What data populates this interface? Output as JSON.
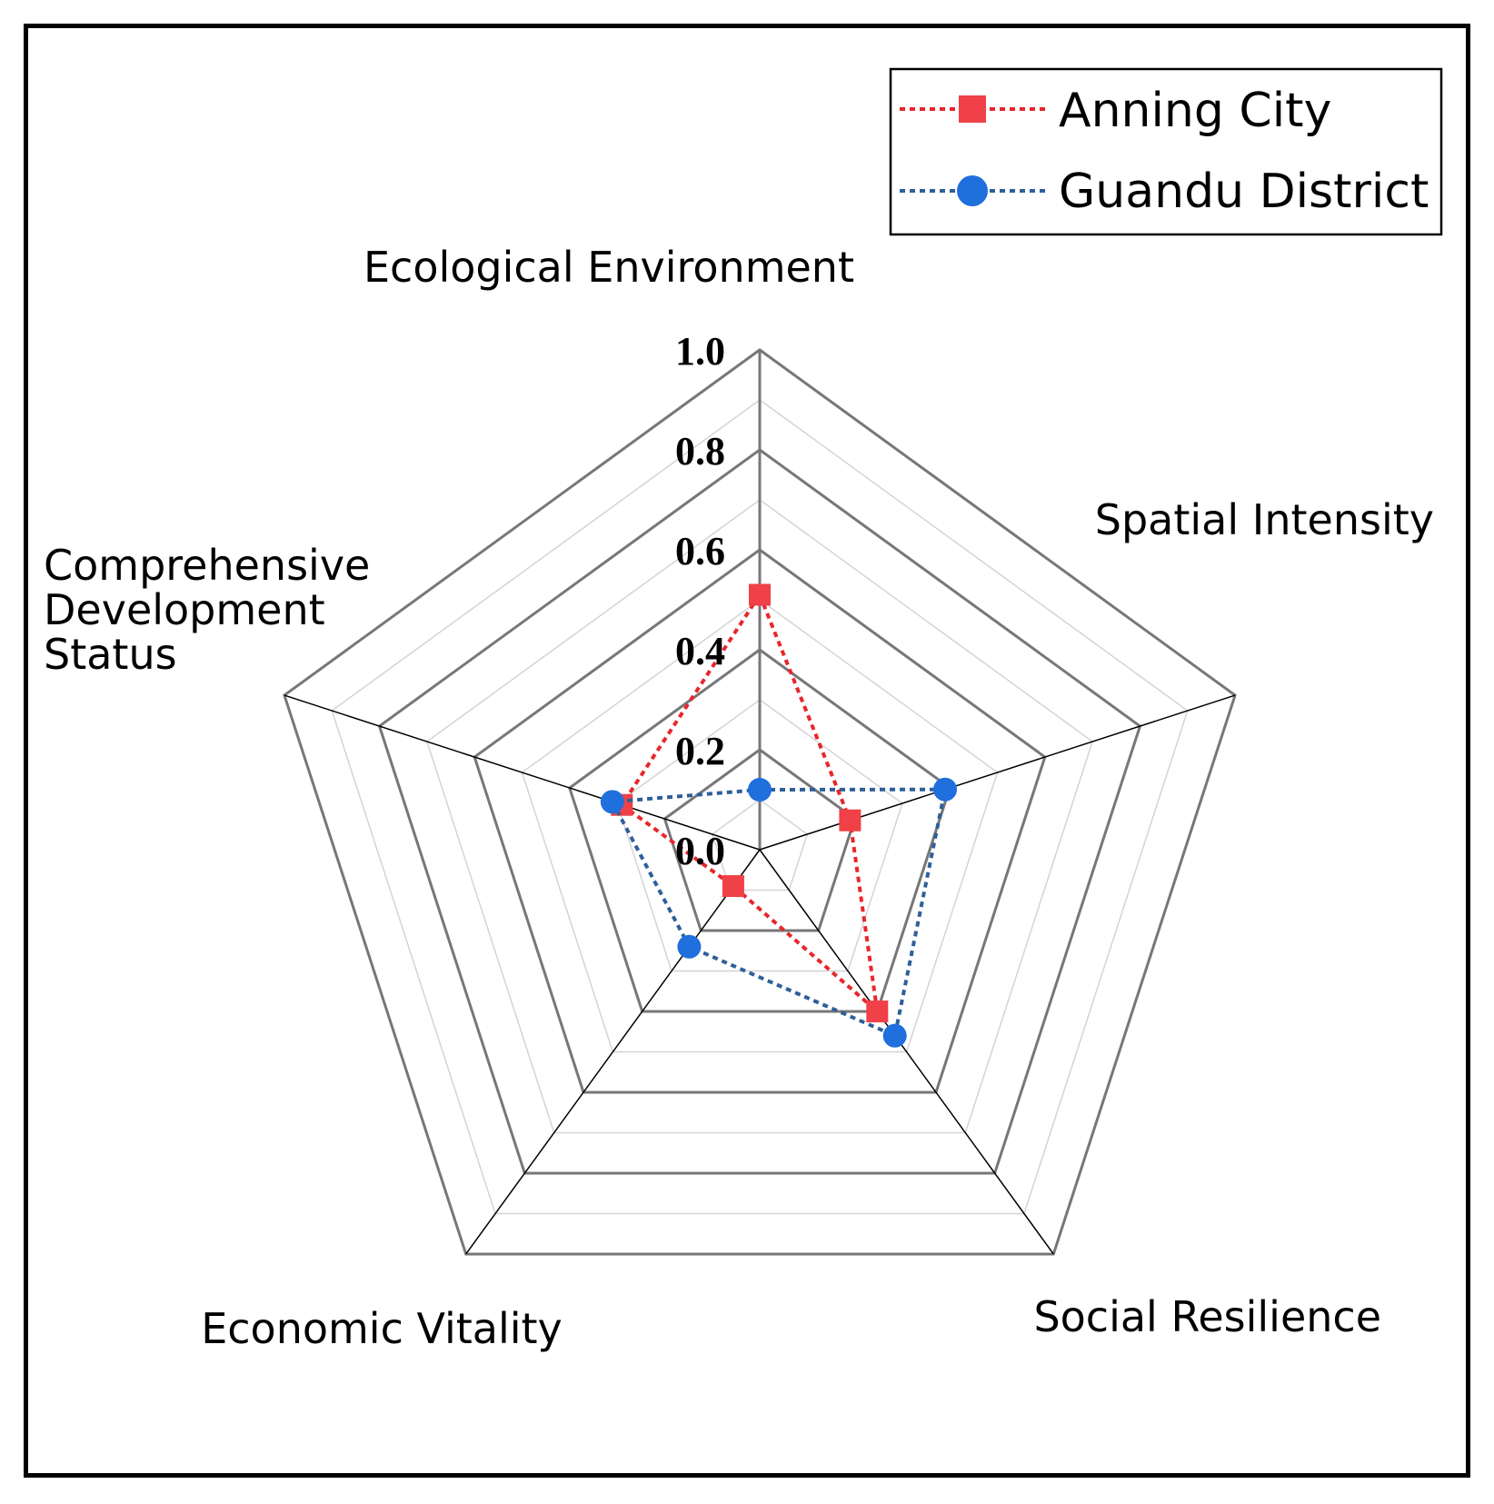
{
  "chart_data": {
    "type": "radar",
    "axes": [
      "Ecological Environment",
      "Spatial Intensity",
      "Social Resilience",
      "Economic Vitality",
      "Comprehensive Development Status"
    ],
    "axis_label_lines": [
      [
        "Ecological Environment"
      ],
      [
        "Spatial Intensity"
      ],
      [
        "Social Resilience"
      ],
      [
        "Economic Vitality"
      ],
      [
        "Comprehensive",
        "Development",
        "Status"
      ]
    ],
    "range": [
      0,
      1.0
    ],
    "ticks": [
      "0.0",
      "0.2",
      "0.4",
      "0.6",
      "0.8",
      "1.0"
    ],
    "tick_values": [
      0,
      0.2,
      0.4,
      0.6,
      0.8,
      1.0
    ],
    "minor_step": 0.1,
    "series": [
      {
        "name": "Anning City",
        "values": [
          0.51,
          0.19,
          0.4,
          0.09,
          0.29
        ],
        "color": "#e8262c",
        "marker": "square"
      },
      {
        "name": "Guandu District",
        "values": [
          0.12,
          0.39,
          0.46,
          0.24,
          0.31
        ],
        "color": "#1f6fdc",
        "marker": "circle"
      }
    ],
    "legend": {
      "position": "top-right",
      "border": true
    }
  },
  "colors": {
    "grid_major": "#777777",
    "grid_minor": "#d4d4d4",
    "spoke": "#000000",
    "anning_line": "#e8262c",
    "anning_marker": "#ef4147",
    "guandu_line": "#2e5f9a",
    "guandu_marker": "#1f6fdc"
  }
}
